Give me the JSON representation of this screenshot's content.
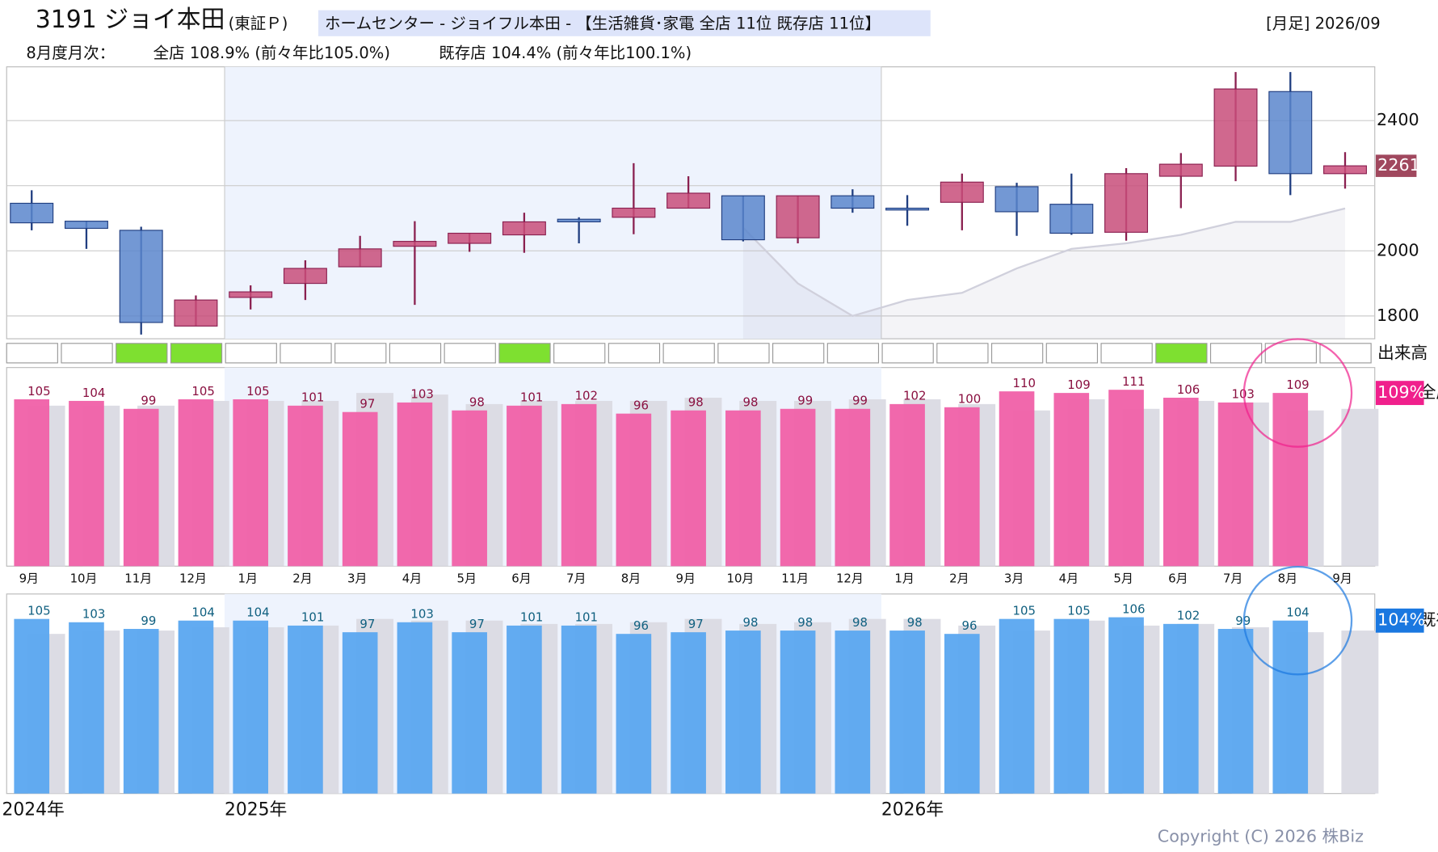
{
  "chart_data": {
    "type": "candlestick",
    "title": "3191 ジョイ本田",
    "exchange": "(東証Ｐ)",
    "subtitle": "ホームセンター - ジョイフル本田 - 【生活雑貨･家電 全店 11位 既存店 11位】",
    "period": "[月足] 2026/09",
    "summary_label": "8月度月次：",
    "summary_all": "全店 108.9% (前々年比105.0%)",
    "summary_existing": "既存店 104.4% (前々年比100.1%)",
    "copyright": "Copyright (C) 2026 株Biz",
    "categories": [
      "9月",
      "10月",
      "11月",
      "12月",
      "1月",
      "2月",
      "3月",
      "4月",
      "5月",
      "6月",
      "7月",
      "8月",
      "9月",
      "10月",
      "11月",
      "12月",
      "1月",
      "2月",
      "3月",
      "4月",
      "5月",
      "6月",
      "7月",
      "8月",
      "9月"
    ],
    "year_labels": [
      {
        "label": "2024年",
        "index": 0
      },
      {
        "label": "2025年",
        "index": 4
      },
      {
        "label": "2026年",
        "index": 16
      }
    ],
    "open": [
      2146,
      2091,
      2063,
      1769,
      1857,
      1900,
      1951,
      2014,
      2023,
      2049,
      2097,
      2103,
      2131,
      2169,
      2040,
      2169,
      2131,
      2149,
      2197,
      2143,
      2057,
      2229,
      2260,
      2489,
      2237
    ],
    "high": [
      2186,
      2091,
      2074,
      1863,
      1894,
      1971,
      2046,
      2091,
      2054,
      2117,
      2103,
      2269,
      2229,
      2169,
      2169,
      2189,
      2171,
      2237,
      2209,
      2237,
      2254,
      2300,
      2549,
      2549,
      2303
    ],
    "low": [
      2063,
      2006,
      1743,
      1769,
      1820,
      1849,
      1951,
      1834,
      1997,
      1994,
      2023,
      2051,
      2131,
      2029,
      2023,
      2117,
      2077,
      2063,
      2046,
      2049,
      2031,
      2131,
      2214,
      2171,
      2191
    ],
    "close": [
      2086,
      2069,
      1780,
      1849,
      1874,
      1946,
      2006,
      2029,
      2054,
      2089,
      2089,
      2131,
      2177,
      2034,
      2169,
      2131,
      2126,
      2211,
      2120,
      2054,
      2237,
      2266,
      2497,
      2237,
      2261
    ],
    "up_color": "#c84d7a",
    "down_color": "#5a86cc",
    "ma": [
      null,
      null,
      null,
      null,
      null,
      null,
      null,
      null,
      null,
      null,
      null,
      null,
      null,
      2071,
      1900,
      1800,
      1849,
      1871,
      1946,
      2006,
      2023,
      2049,
      2089,
      2089,
      2130
    ],
    "ylim": [
      1730,
      2565
    ],
    "yticks": [
      1800,
      2000,
      2400
    ],
    "grid_lines": [
      1800,
      2000,
      2200,
      2400
    ],
    "volume_label": "出来高",
    "volume_highlight": [
      false,
      false,
      true,
      true,
      false,
      false,
      false,
      false,
      false,
      true,
      false,
      false,
      false,
      false,
      false,
      false,
      false,
      false,
      false,
      false,
      false,
      true,
      false,
      false,
      false
    ],
    "panels": [
      {
        "name": "全店",
        "color": "#f060a8",
        "label_color": "#f0208c",
        "prev_color": "#dcdce4",
        "current_label": "109%",
        "ylim": [
          0,
          125
        ],
        "values": [
          105,
          104,
          99,
          105,
          105,
          101,
          97,
          103,
          98,
          101,
          102,
          96,
          98,
          98,
          99,
          99,
          102,
          100,
          110,
          109,
          111,
          106,
          103,
          109
        ],
        "prev_values": [
          101,
          101,
          101,
          104,
          104,
          104,
          109,
          108,
          102,
          104,
          104,
          104,
          106,
          104,
          104,
          105,
          105,
          102,
          98,
          105,
          99,
          104,
          103,
          98,
          99
        ]
      },
      {
        "name": "既存店",
        "color": "#5aa6f0",
        "label_color": "#1a78e0",
        "prev_color": "#dcdce4",
        "current_label": "104%",
        "ylim": [
          0,
          120
        ],
        "values": [
          105,
          103,
          99,
          104,
          104,
          101,
          97,
          103,
          97,
          101,
          101,
          96,
          97,
          98,
          98,
          98,
          98,
          96,
          105,
          105,
          106,
          102,
          99,
          104
        ],
        "prev_values": [
          96,
          98,
          98,
          100,
          100,
          101,
          105,
          104,
          104,
          102,
          102,
          103,
          105,
          102,
          103,
          105,
          105,
          101,
          98,
          104,
          101,
          102,
          100,
          97,
          98
        ]
      }
    ]
  }
}
